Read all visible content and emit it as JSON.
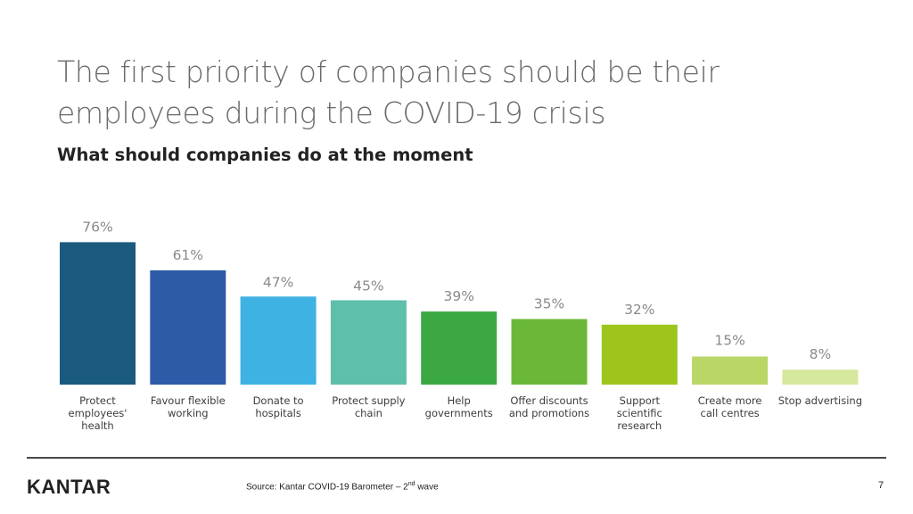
{
  "slide": {
    "title": "The first priority of companies should be their employees during the COVID-19 crisis",
    "subtitle": "What should companies do at the moment",
    "logo": "KANTAR",
    "source_prefix": "Source: Kantar COVID-19 Barometer – 2",
    "source_sup": "nd",
    "source_suffix": " wave",
    "page_number": "7"
  },
  "chart_data": {
    "type": "bar",
    "title": "What should companies do at the moment",
    "unit": "%",
    "ylim": [
      0,
      80
    ],
    "grid": false,
    "categories": [
      [
        "Protect",
        "employees'",
        "health"
      ],
      [
        "Favour flexible",
        "working"
      ],
      [
        "Donate to",
        "hospitals"
      ],
      [
        "Protect supply",
        "chain"
      ],
      [
        "Help",
        "governments"
      ],
      [
        "Offer discounts",
        "and promotions"
      ],
      [
        "Support",
        "scientific",
        "research"
      ],
      [
        "Create more",
        "call centres"
      ],
      [
        "Stop advertising"
      ]
    ],
    "values": [
      76,
      61,
      47,
      45,
      39,
      35,
      32,
      15,
      8
    ],
    "value_labels": [
      "76%",
      "61%",
      "47%",
      "45%",
      "39%",
      "35%",
      "32%",
      "15%",
      "8%"
    ],
    "colors": [
      "#1a5a7e",
      "#2d5ba8",
      "#3db2e3",
      "#5ec0a8",
      "#3ba844",
      "#6bb838",
      "#9dc51c",
      "#b9d666",
      "#d6e89c"
    ]
  }
}
